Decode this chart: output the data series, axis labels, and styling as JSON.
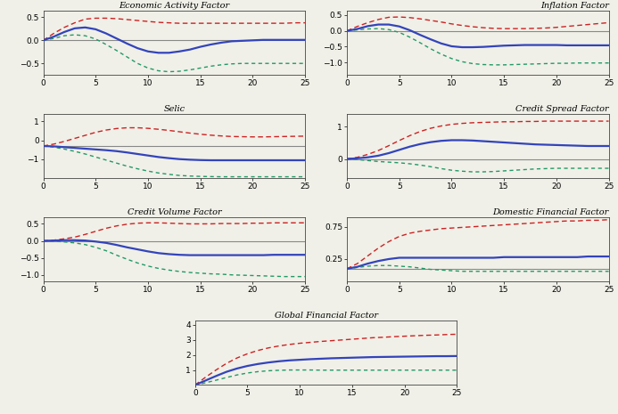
{
  "x": [
    0,
    1,
    2,
    3,
    4,
    5,
    6,
    7,
    8,
    9,
    10,
    11,
    12,
    13,
    14,
    15,
    16,
    17,
    18,
    19,
    20,
    21,
    22,
    23,
    24,
    25
  ],
  "panels": [
    {
      "title": "Economic Activity Factor",
      "ylim": [
        -0.75,
        0.65
      ],
      "yticks": [
        -0.5,
        0.0,
        0.5
      ],
      "hline": 0.0,
      "blue": [
        0.0,
        0.08,
        0.18,
        0.26,
        0.28,
        0.24,
        0.15,
        0.04,
        -0.07,
        -0.17,
        -0.24,
        -0.27,
        -0.27,
        -0.24,
        -0.2,
        -0.14,
        -0.09,
        -0.05,
        -0.02,
        -0.01,
        0.0,
        0.01,
        0.01,
        0.01,
        0.01,
        0.01
      ],
      "red": [
        0.0,
        0.15,
        0.28,
        0.38,
        0.46,
        0.48,
        0.48,
        0.47,
        0.45,
        0.43,
        0.41,
        0.39,
        0.38,
        0.37,
        0.37,
        0.37,
        0.37,
        0.37,
        0.37,
        0.37,
        0.37,
        0.37,
        0.37,
        0.37,
        0.38,
        0.38
      ],
      "green": [
        0.0,
        0.04,
        0.1,
        0.12,
        0.1,
        0.03,
        -0.09,
        -0.22,
        -0.36,
        -0.5,
        -0.6,
        -0.66,
        -0.68,
        -0.67,
        -0.64,
        -0.6,
        -0.56,
        -0.53,
        -0.51,
        -0.5,
        -0.5,
        -0.5,
        -0.5,
        -0.5,
        -0.5,
        -0.5
      ]
    },
    {
      "title": "Inflation Factor",
      "ylim": [
        -1.4,
        0.65
      ],
      "yticks": [
        -1.0,
        -0.5,
        0.0,
        0.5
      ],
      "hline": 0.0,
      "blue": [
        0.0,
        0.06,
        0.15,
        0.2,
        0.2,
        0.14,
        0.02,
        -0.13,
        -0.27,
        -0.4,
        -0.49,
        -0.52,
        -0.52,
        -0.51,
        -0.49,
        -0.47,
        -0.46,
        -0.45,
        -0.45,
        -0.45,
        -0.45,
        -0.46,
        -0.46,
        -0.46,
        -0.46,
        -0.46
      ],
      "red": [
        0.0,
        0.14,
        0.26,
        0.36,
        0.43,
        0.44,
        0.42,
        0.38,
        0.33,
        0.28,
        0.22,
        0.17,
        0.13,
        0.1,
        0.08,
        0.07,
        0.07,
        0.07,
        0.08,
        0.09,
        0.11,
        0.14,
        0.17,
        0.2,
        0.23,
        0.26
      ],
      "green": [
        0.0,
        0.03,
        0.06,
        0.07,
        0.04,
        -0.05,
        -0.2,
        -0.38,
        -0.57,
        -0.74,
        -0.88,
        -0.98,
        -1.04,
        -1.07,
        -1.08,
        -1.08,
        -1.07,
        -1.06,
        -1.05,
        -1.04,
        -1.03,
        -1.03,
        -1.02,
        -1.02,
        -1.02,
        -1.02
      ]
    },
    {
      "title": "Selic",
      "ylim": [
        -2.0,
        1.4
      ],
      "yticks": [
        -1.0,
        0.0,
        1.0
      ],
      "hline": -0.3,
      "blue": [
        -0.3,
        -0.32,
        -0.36,
        -0.4,
        -0.44,
        -0.48,
        -0.52,
        -0.57,
        -0.64,
        -0.72,
        -0.8,
        -0.88,
        -0.94,
        -0.99,
        -1.02,
        -1.04,
        -1.05,
        -1.05,
        -1.05,
        -1.05,
        -1.05,
        -1.05,
        -1.05,
        -1.05,
        -1.05,
        -1.05
      ],
      "red": [
        -0.3,
        -0.2,
        -0.06,
        0.1,
        0.26,
        0.42,
        0.54,
        0.62,
        0.66,
        0.66,
        0.63,
        0.58,
        0.52,
        0.45,
        0.38,
        0.32,
        0.27,
        0.23,
        0.2,
        0.19,
        0.18,
        0.18,
        0.19,
        0.2,
        0.21,
        0.22
      ],
      "green": [
        -0.3,
        -0.36,
        -0.46,
        -0.58,
        -0.72,
        -0.88,
        -1.04,
        -1.2,
        -1.36,
        -1.5,
        -1.62,
        -1.72,
        -1.79,
        -1.85,
        -1.88,
        -1.9,
        -1.91,
        -1.92,
        -1.92,
        -1.92,
        -1.92,
        -1.92,
        -1.92,
        -1.92,
        -1.92,
        -1.92
      ]
    },
    {
      "title": "Credit Spread Factor",
      "ylim": [
        -0.6,
        1.4
      ],
      "yticks": [
        0.0,
        1.0
      ],
      "hline": 0.0,
      "blue": [
        0.0,
        0.02,
        0.05,
        0.1,
        0.18,
        0.28,
        0.38,
        0.46,
        0.52,
        0.56,
        0.58,
        0.58,
        0.57,
        0.55,
        0.53,
        0.51,
        0.49,
        0.47,
        0.45,
        0.44,
        0.43,
        0.42,
        0.41,
        0.4,
        0.4,
        0.4
      ],
      "red": [
        0.0,
        0.05,
        0.14,
        0.26,
        0.41,
        0.57,
        0.72,
        0.85,
        0.95,
        1.02,
        1.07,
        1.1,
        1.12,
        1.13,
        1.14,
        1.15,
        1.15,
        1.16,
        1.16,
        1.17,
        1.17,
        1.17,
        1.17,
        1.17,
        1.17,
        1.17
      ],
      "green": [
        0.0,
        -0.02,
        -0.05,
        -0.08,
        -0.1,
        -0.12,
        -0.15,
        -0.19,
        -0.24,
        -0.3,
        -0.35,
        -0.38,
        -0.4,
        -0.4,
        -0.39,
        -0.37,
        -0.35,
        -0.33,
        -0.31,
        -0.3,
        -0.29,
        -0.29,
        -0.29,
        -0.29,
        -0.29,
        -0.29
      ]
    },
    {
      "title": "Credit Volume Factor",
      "ylim": [
        -1.2,
        0.7
      ],
      "yticks": [
        -1.0,
        -0.5,
        0.0,
        0.5
      ],
      "hline": 0.0,
      "blue": [
        0.0,
        0.01,
        0.02,
        0.02,
        0.01,
        -0.02,
        -0.06,
        -0.12,
        -0.19,
        -0.25,
        -0.31,
        -0.36,
        -0.39,
        -0.41,
        -0.42,
        -0.42,
        -0.42,
        -0.42,
        -0.42,
        -0.42,
        -0.42,
        -0.42,
        -0.41,
        -0.41,
        -0.41,
        -0.41
      ],
      "red": [
        0.0,
        0.02,
        0.06,
        0.11,
        0.19,
        0.28,
        0.37,
        0.44,
        0.49,
        0.52,
        0.53,
        0.53,
        0.52,
        0.51,
        0.5,
        0.5,
        0.5,
        0.51,
        0.51,
        0.51,
        0.52,
        0.52,
        0.53,
        0.53,
        0.53,
        0.53
      ],
      "green": [
        0.0,
        -0.01,
        -0.03,
        -0.06,
        -0.11,
        -0.19,
        -0.29,
        -0.42,
        -0.54,
        -0.65,
        -0.74,
        -0.81,
        -0.86,
        -0.9,
        -0.93,
        -0.95,
        -0.97,
        -0.98,
        -1.0,
        -1.01,
        -1.02,
        -1.03,
        -1.04,
        -1.05,
        -1.05,
        -1.05
      ]
    },
    {
      "title": "Domestic Financial Factor",
      "ylim": [
        -0.1,
        0.9
      ],
      "yticks": [
        0.25,
        0.75
      ],
      "hline": 0.1,
      "blue": [
        0.1,
        0.13,
        0.18,
        0.22,
        0.25,
        0.27,
        0.27,
        0.27,
        0.27,
        0.27,
        0.27,
        0.27,
        0.27,
        0.27,
        0.27,
        0.28,
        0.28,
        0.28,
        0.28,
        0.28,
        0.28,
        0.28,
        0.28,
        0.29,
        0.29,
        0.29
      ],
      "red": [
        0.1,
        0.18,
        0.3,
        0.42,
        0.52,
        0.6,
        0.65,
        0.68,
        0.7,
        0.72,
        0.73,
        0.74,
        0.75,
        0.76,
        0.77,
        0.78,
        0.79,
        0.8,
        0.81,
        0.82,
        0.83,
        0.84,
        0.84,
        0.85,
        0.85,
        0.86
      ],
      "green": [
        0.1,
        0.12,
        0.14,
        0.15,
        0.15,
        0.14,
        0.13,
        0.11,
        0.09,
        0.08,
        0.07,
        0.06,
        0.06,
        0.06,
        0.06,
        0.06,
        0.06,
        0.06,
        0.06,
        0.06,
        0.06,
        0.06,
        0.06,
        0.06,
        0.06,
        0.06
      ]
    },
    {
      "title": "Global Financial Factor",
      "ylim": [
        0.0,
        4.3
      ],
      "yticks": [
        1.0,
        2.0,
        3.0,
        4.0
      ],
      "hline": null,
      "blue": [
        0.0,
        0.3,
        0.6,
        0.88,
        1.1,
        1.27,
        1.4,
        1.5,
        1.58,
        1.64,
        1.68,
        1.72,
        1.75,
        1.78,
        1.8,
        1.82,
        1.84,
        1.86,
        1.87,
        1.88,
        1.89,
        1.9,
        1.91,
        1.92,
        1.92,
        1.93
      ],
      "red": [
        0.0,
        0.52,
        1.0,
        1.44,
        1.8,
        2.08,
        2.3,
        2.47,
        2.6,
        2.7,
        2.78,
        2.84,
        2.9,
        2.95,
        3.0,
        3.05,
        3.1,
        3.15,
        3.18,
        3.22,
        3.25,
        3.28,
        3.31,
        3.33,
        3.36,
        3.38
      ],
      "green": [
        0.0,
        0.15,
        0.32,
        0.5,
        0.67,
        0.8,
        0.89,
        0.95,
        0.98,
        1.0,
        1.0,
        1.0,
        0.99,
        0.99,
        0.99,
        0.99,
        0.99,
        0.99,
        0.99,
        0.99,
        0.99,
        0.99,
        0.99,
        0.99,
        0.99,
        0.99
      ]
    }
  ],
  "line_color_blue": "#3344bb",
  "line_color_red": "#cc2222",
  "line_color_green": "#229966",
  "zero_line_color": "#888888",
  "bg_color": "#f0f0e8",
  "font_size_title": 7.0,
  "font_size_tick": 6.5,
  "xticks": [
    0,
    5,
    10,
    15,
    20,
    25
  ]
}
